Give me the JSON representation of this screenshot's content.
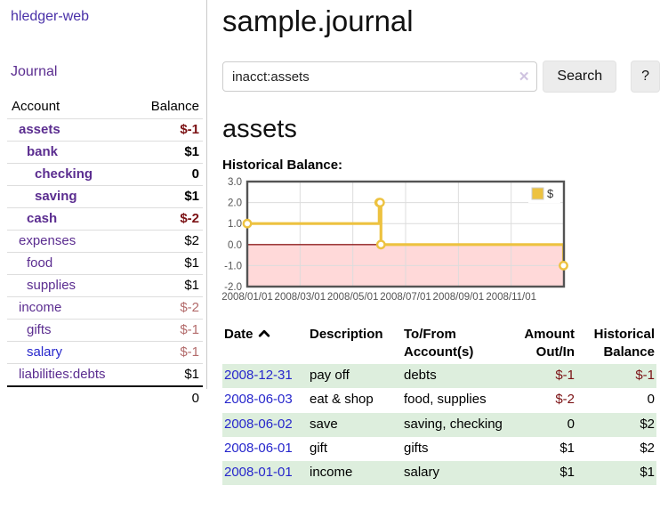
{
  "app": {
    "brand": "hledger-web",
    "nav": {
      "journal": "Journal"
    }
  },
  "sidebar": {
    "header": {
      "account": "Account",
      "balance": "Balance"
    },
    "accounts": [
      {
        "name": "assets",
        "depth": 0,
        "balance": "$-1",
        "bold": true,
        "balance_tone": "negative-strong",
        "link_tone": "purple"
      },
      {
        "name": "bank",
        "depth": 1,
        "balance": "$1",
        "bold": true,
        "balance_tone": "normal",
        "link_tone": "purple"
      },
      {
        "name": "checking",
        "depth": 2,
        "balance": "0",
        "bold": true,
        "balance_tone": "normal",
        "link_tone": "purple"
      },
      {
        "name": "saving",
        "depth": 2,
        "balance": "$1",
        "bold": true,
        "balance_tone": "normal",
        "link_tone": "purple"
      },
      {
        "name": "cash",
        "depth": 1,
        "balance": "$-2",
        "bold": true,
        "balance_tone": "negative-strong",
        "link_tone": "purple"
      },
      {
        "name": "expenses",
        "depth": 0,
        "balance": "$2",
        "bold": false,
        "balance_tone": "normal",
        "link_tone": "purple"
      },
      {
        "name": "food",
        "depth": 1,
        "balance": "$1",
        "bold": false,
        "balance_tone": "normal",
        "link_tone": "purple"
      },
      {
        "name": "supplies",
        "depth": 1,
        "balance": "$1",
        "bold": false,
        "balance_tone": "normal",
        "link_tone": "purple"
      },
      {
        "name": "income",
        "depth": 0,
        "balance": "$-2",
        "bold": false,
        "balance_tone": "negative-soft",
        "link_tone": "purple"
      },
      {
        "name": "gifts",
        "depth": 1,
        "balance": "$-1",
        "bold": false,
        "balance_tone": "negative-soft",
        "link_tone": "purple"
      },
      {
        "name": "salary",
        "depth": 1,
        "balance": "$-1",
        "bold": false,
        "balance_tone": "negative-soft",
        "link_tone": "blue"
      },
      {
        "name": "liabilities:debts",
        "depth": 0,
        "balance": "$1",
        "bold": false,
        "balance_tone": "normal",
        "link_tone": "purple"
      }
    ],
    "total": "0"
  },
  "main": {
    "title": "sample.journal",
    "search": {
      "value": "inacct:assets",
      "clear_icon": "✕",
      "search_button": "Search",
      "help_button": "?"
    },
    "account_heading": "assets",
    "chart_heading": "Historical Balance:"
  },
  "chart_data": {
    "type": "line",
    "subtype": "step-after",
    "title": "Historical Balance",
    "series": [
      {
        "name": "$",
        "color": "#edc240",
        "points": [
          [
            "2008-01-01",
            1
          ],
          [
            "2008-06-01",
            2
          ],
          [
            "2008-06-02",
            2
          ],
          [
            "2008-06-03",
            0
          ],
          [
            "2008-12-31",
            -1
          ]
        ]
      }
    ],
    "x_ticks": [
      "2008/01/01",
      "2008/03/01",
      "2008/05/01",
      "2008/07/01",
      "2008/09/01",
      "2008/11/01"
    ],
    "x_tick_months": [
      0,
      2,
      4,
      6,
      8,
      10
    ],
    "x_range_months": [
      0,
      12
    ],
    "y_ticks": [
      3,
      2,
      1,
      0,
      -1,
      -2
    ],
    "y_tick_labels": [
      "3.0",
      "2.0",
      "1.0",
      "0.0",
      "-1.0",
      "-2.0"
    ],
    "ylim": [
      -2,
      3
    ],
    "grid": true,
    "legend_position": "top-right",
    "legend_entries": [
      "$"
    ],
    "colors": {
      "line": "#edc240",
      "negative_region": "#ffd9d9",
      "zero_line": "#8f1f1f",
      "gridline": "#dcdcdc",
      "border": "#545454",
      "tick_text": "#545454"
    }
  },
  "register": {
    "columns": [
      "Date",
      "Description",
      "To/From Account(s)",
      "Amount Out/In",
      "Historical Balance"
    ],
    "sort": {
      "column": "Date",
      "direction": "ascending"
    },
    "rows": [
      {
        "date": "2008-12-31",
        "description": "pay off",
        "accounts": "debts",
        "amount": "$-1",
        "amount_tone": "negative",
        "balance": "$-1",
        "balance_tone": "negative"
      },
      {
        "date": "2008-06-03",
        "description": "eat & shop",
        "accounts": "food, supplies",
        "amount": "$-2",
        "amount_tone": "negative",
        "balance": "0",
        "balance_tone": "normal"
      },
      {
        "date": "2008-06-02",
        "description": "save",
        "accounts": "saving, checking",
        "amount": "0",
        "amount_tone": "normal",
        "balance": "$2",
        "balance_tone": "normal"
      },
      {
        "date": "2008-06-01",
        "description": "gift",
        "accounts": "gifts",
        "amount": "$1",
        "amount_tone": "normal",
        "balance": "$2",
        "balance_tone": "normal"
      },
      {
        "date": "2008-01-01",
        "description": "income",
        "accounts": "salary",
        "amount": "$1",
        "amount_tone": "normal",
        "balance": "$1",
        "balance_tone": "normal"
      }
    ]
  },
  "colors": {
    "accent_purple": "#5b2d90",
    "brand_purple": "#4930a8",
    "link_blue": "#2727cc",
    "negative_strong": "#7b1114",
    "negative_soft": "#b36b6b",
    "row_green": "#ddeedd",
    "chart_gold": "#edc240"
  }
}
